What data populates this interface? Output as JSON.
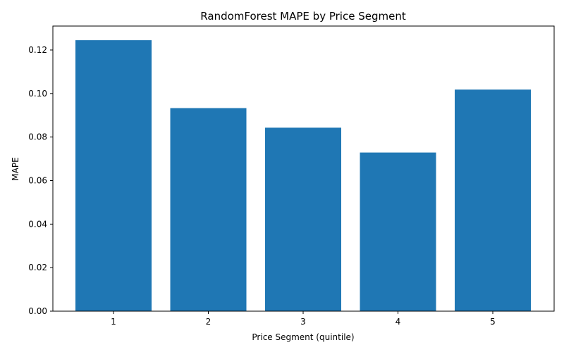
{
  "chart_data": {
    "type": "bar",
    "title": "RandomForest MAPE by Price Segment",
    "xlabel": "Price Segment (quintile)",
    "ylabel": "MAPE",
    "categories": [
      "1",
      "2",
      "3",
      "4",
      "5"
    ],
    "values": [
      0.1245,
      0.0933,
      0.0843,
      0.0729,
      0.1018
    ],
    "ylim": [
      0,
      0.131
    ],
    "yticks": [
      "0.00",
      "0.02",
      "0.04",
      "0.06",
      "0.08",
      "0.10",
      "0.12"
    ],
    "grid": false,
    "bar_color": "#1f77b4"
  }
}
